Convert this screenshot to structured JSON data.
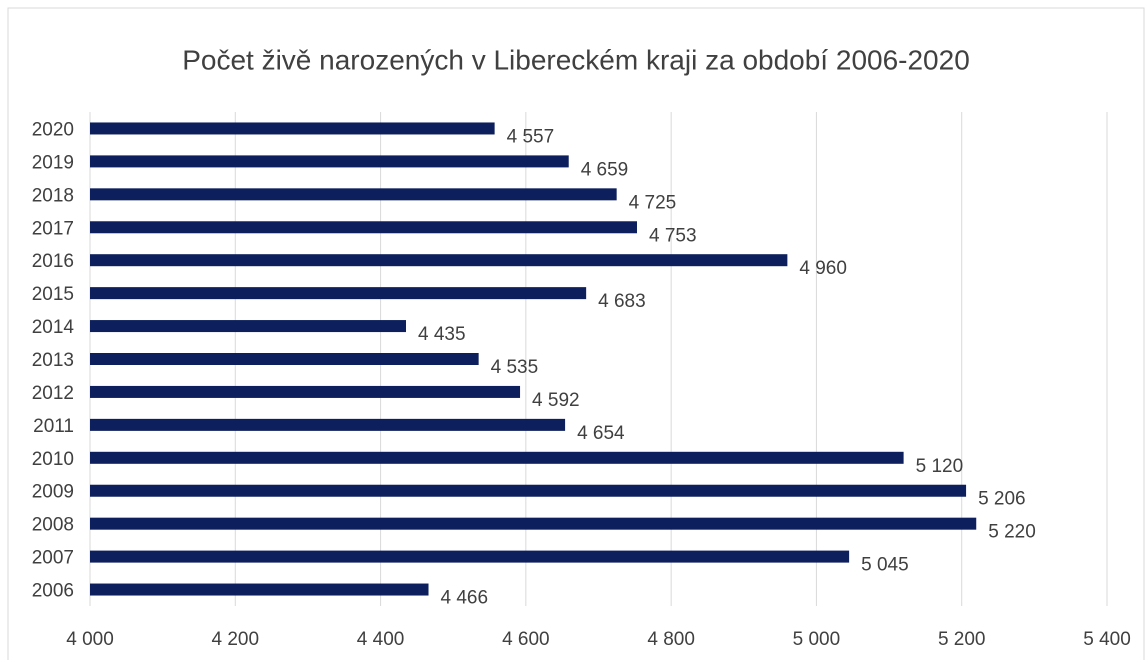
{
  "chart_data": {
    "type": "barh",
    "title": "Počet živě narozených v Libereckém kraji za období 2006-2020",
    "categories": [
      "2006",
      "2007",
      "2008",
      "2009",
      "2010",
      "2011",
      "2012",
      "2013",
      "2014",
      "2015",
      "2016",
      "2017",
      "2018",
      "2019",
      "2020"
    ],
    "values": [
      4466,
      5045,
      5220,
      5206,
      5120,
      4654,
      4592,
      4535,
      4435,
      4683,
      4960,
      4753,
      4725,
      4659,
      4557
    ],
    "value_labels": [
      "4 466",
      "5 045",
      "5 220",
      "5 206",
      "5 120",
      "4 654",
      "4 592",
      "4 535",
      "4 435",
      "4 683",
      "4 960",
      "4 753",
      "4 725",
      "4 659",
      "4 557"
    ],
    "color": "#0d1f5c",
    "xlim": [
      4000,
      5400
    ],
    "xticks": [
      {
        "value": 4000,
        "label": "4 000"
      },
      {
        "value": 4200,
        "label": "4 200"
      },
      {
        "value": 4400,
        "label": "4 400"
      },
      {
        "value": 4600,
        "label": "4 600"
      },
      {
        "value": 4800,
        "label": "4 800"
      },
      {
        "value": 5000,
        "label": "5 000"
      },
      {
        "value": 5200,
        "label": "5 200"
      },
      {
        "value": 5400,
        "label": "5 400"
      }
    ],
    "grid": true
  }
}
